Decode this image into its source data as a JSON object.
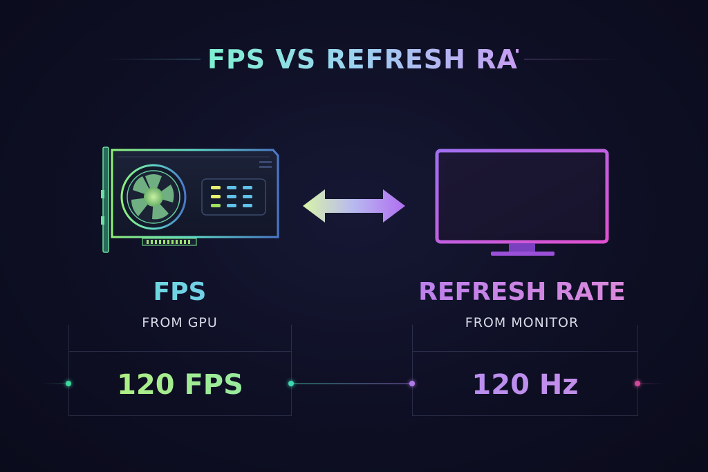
{
  "title": "FPS VS REFRESH RATE",
  "left": {
    "label": "FPS",
    "sublabel": "FROM GPU",
    "value": "120 FPS",
    "icon": "gpu-icon"
  },
  "right": {
    "label": "REFRESH RATE",
    "sublabel": "FROM MONITOR",
    "value": "120 Hz",
    "icon": "monitor-icon"
  },
  "center_icon": "double-arrow-icon",
  "colors": {
    "background": "#0e0f24",
    "green_accent": "#9eea7c",
    "cyan_accent": "#6fd6e8",
    "purple_accent": "#b87ff0",
    "magenta_accent": "#e064d8"
  }
}
